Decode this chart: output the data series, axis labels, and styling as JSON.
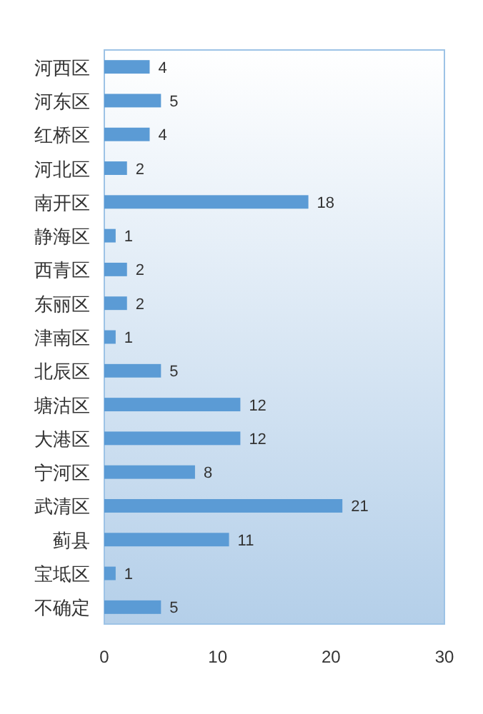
{
  "chart_data": {
    "type": "bar",
    "orientation": "horizontal",
    "categories": [
      "河西区",
      "河东区",
      "红桥区",
      "河北区",
      "南开区",
      "静海区",
      "西青区",
      "东丽区",
      "津南区",
      "北辰区",
      "塘沽区",
      "大港区",
      "宁河区",
      "武清区",
      "蓟县",
      "宝坻区",
      "不确定"
    ],
    "values": [
      4,
      5,
      4,
      2,
      18,
      1,
      2,
      2,
      1,
      5,
      12,
      12,
      8,
      21,
      11,
      1,
      5
    ],
    "color": "#5b9bd5",
    "xlim": [
      0,
      30
    ],
    "xticks": [
      0,
      10,
      20,
      30
    ],
    "data_labels": true,
    "grid": false
  }
}
